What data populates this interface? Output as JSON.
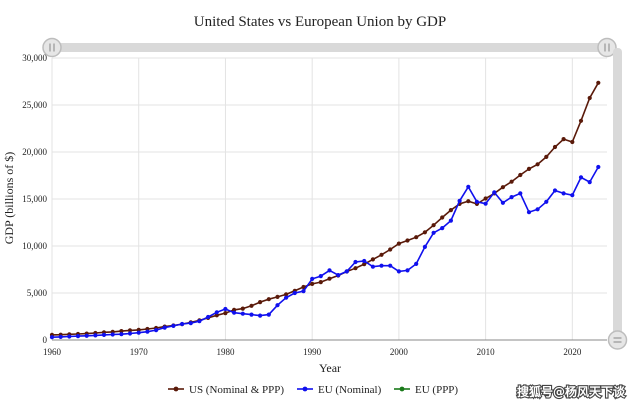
{
  "chart_data": {
    "type": "line",
    "title": "United States vs European Union by GDP",
    "xlabel": "Year",
    "ylabel": "GDP (billions of $)",
    "xlim": [
      1960,
      2024
    ],
    "ylim": [
      0,
      30000
    ],
    "x_ticks": [
      "1960",
      "1970",
      "1980",
      "1990",
      "2000",
      "2010",
      "2020"
    ],
    "y_ticks": [
      "0",
      "5,000",
      "10,000",
      "15,000",
      "20,000",
      "25,000",
      "30,000"
    ],
    "grid": true,
    "legend_position": "bottom",
    "series": [
      {
        "name": "US (Nominal & PPP)",
        "color": "#5a1a0a",
        "x": [
          1960,
          1961,
          1962,
          1963,
          1964,
          1965,
          1966,
          1967,
          1968,
          1969,
          1970,
          1971,
          1972,
          1973,
          1974,
          1975,
          1976,
          1977,
          1978,
          1979,
          1980,
          1981,
          1982,
          1983,
          1984,
          1985,
          1986,
          1987,
          1988,
          1989,
          1990,
          1991,
          1992,
          1993,
          1994,
          1995,
          1996,
          1997,
          1998,
          1999,
          2000,
          2001,
          2002,
          2003,
          2004,
          2005,
          2006,
          2007,
          2008,
          2009,
          2010,
          2011,
          2012,
          2013,
          2014,
          2015,
          2016,
          2017,
          2018,
          2019,
          2020,
          2021,
          2022,
          2023
        ],
        "values": [
          543,
          563,
          605,
          638,
          686,
          744,
          815,
          862,
          943,
          1020,
          1073,
          1165,
          1280,
          1425,
          1545,
          1685,
          1873,
          2081,
          2351,
          2627,
          2857,
          3207,
          3343,
          3634,
          4037,
          4339,
          4580,
          4855,
          5236,
          5642,
          5963,
          6158,
          6520,
          6858,
          7287,
          7640,
          8073,
          8578,
          9063,
          9631,
          10251,
          10582,
          10936,
          11458,
          12214,
          13037,
          13815,
          14475,
          14770,
          14478,
          15049,
          15600,
          16254,
          16843,
          17551,
          18206,
          18695,
          19480,
          20527,
          21373,
          21060,
          23315,
          25744,
          27361
        ]
      },
      {
        "name": "EU (Nominal)",
        "color": "#1010ee",
        "x": [
          1960,
          1961,
          1962,
          1963,
          1964,
          1965,
          1966,
          1967,
          1968,
          1969,
          1970,
          1971,
          1972,
          1973,
          1974,
          1975,
          1976,
          1977,
          1978,
          1979,
          1980,
          1981,
          1982,
          1983,
          1984,
          1985,
          1986,
          1987,
          1988,
          1989,
          1990,
          1991,
          1992,
          1993,
          1994,
          1995,
          1996,
          1997,
          1998,
          1999,
          2000,
          2001,
          2002,
          2003,
          2004,
          2005,
          2006,
          2007,
          2008,
          2009,
          2010,
          2011,
          2012,
          2013,
          2014,
          2015,
          2016,
          2017,
          2018,
          2019,
          2020,
          2021,
          2022,
          2023
        ],
        "values": [
          300,
          330,
          370,
          410,
          450,
          490,
          540,
          580,
          620,
          690,
          780,
          880,
          1050,
          1320,
          1500,
          1700,
          1800,
          2000,
          2450,
          2950,
          3300,
          2900,
          2800,
          2700,
          2600,
          2700,
          3700,
          4500,
          5000,
          5200,
          6500,
          6800,
          7400,
          6900,
          7300,
          8300,
          8400,
          7800,
          7900,
          7900,
          7300,
          7400,
          8100,
          9900,
          11400,
          11900,
          12700,
          14800,
          16300,
          14700,
          14500,
          15700,
          14600,
          15200,
          15600,
          13600,
          13900,
          14700,
          15900,
          15600,
          15400,
          17300,
          16800,
          18400
        ]
      },
      {
        "name": "EU (PPP)",
        "color": "#1a7a1a",
        "x": [],
        "values": []
      }
    ]
  },
  "watermark": {
    "text": "搜狐号@杨风天下谈"
  }
}
